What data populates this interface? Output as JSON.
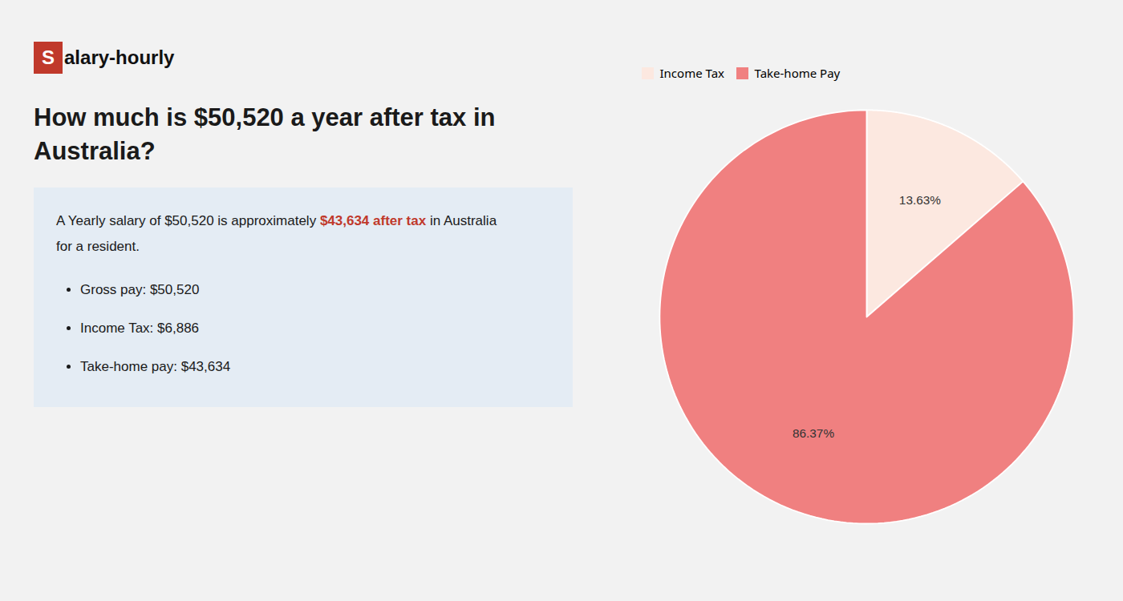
{
  "chart_data": {
    "type": "pie",
    "title": "How much is $50,520 a year after tax in Australia?",
    "categories": [
      "Income Tax",
      "Take-home Pay"
    ],
    "values": [
      13.63,
      86.37
    ],
    "value_labels": [
      "13.63%",
      "86.37%"
    ],
    "colors": [
      "#fce8e0",
      "#f08080"
    ],
    "data_labels": true,
    "legend": "top",
    "annotations": [
      {
        "text": "Salary-hourly",
        "color": "#c0392b"
      },
      [
        {
          "text": "A Yearly salary of $50,520 is approximately "
        },
        {
          "text": "$43,634 after tax",
          "color": "#c0392b"
        },
        {
          "text": " in Australia for a resident."
        }
      ],
      "Gross pay: $50,520",
      "Income Tax: $6,886",
      "Take-home pay: $43,634"
    ]
  }
}
